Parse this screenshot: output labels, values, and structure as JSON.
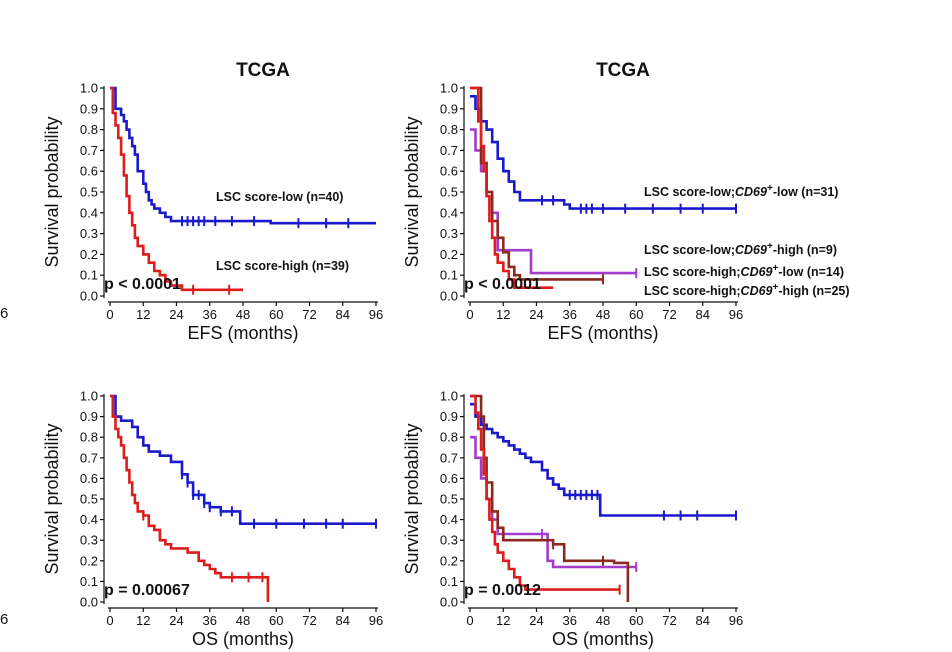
{
  "colors": {
    "low": "#1a1acc",
    "high": "#dd1c1c",
    "purple": "#a23ccc",
    "brown": "#8b2a1e"
  },
  "edge_fragments": [
    "6",
    "6"
  ],
  "chart_data": [
    {
      "type": "line",
      "title": "TCGA",
      "xlabel": "EFS (months)",
      "ylabel": "Survival probability",
      "xlim": [
        0,
        96
      ],
      "ylim": [
        0,
        1
      ],
      "xticks": [
        "0",
        "12",
        "24",
        "36",
        "48",
        "60",
        "72",
        "84",
        "96"
      ],
      "yticks": [
        "0.0",
        "0.1",
        "0.2",
        "0.3",
        "0.4",
        "0.5",
        "0.6",
        "0.7",
        "0.8",
        "0.9",
        "1.0"
      ],
      "pvalue": "p < 0.0001",
      "series": [
        {
          "name": "LSC score-low (n=40)",
          "color_key": "low",
          "legend": [
            {
              "t": "LSC score-low (n=40)",
              "i": false
            }
          ],
          "x": [
            0,
            2,
            4,
            5,
            6,
            7,
            8,
            9,
            10,
            12,
            13,
            14,
            15,
            16,
            18,
            20,
            22,
            58,
            96
          ],
          "y": [
            1,
            0.9,
            0.87,
            0.84,
            0.8,
            0.76,
            0.72,
            0.68,
            0.6,
            0.54,
            0.5,
            0.46,
            0.44,
            0.42,
            0.4,
            0.38,
            0.36,
            0.35,
            0.35
          ],
          "censor_x": [
            26,
            28,
            30,
            32,
            34,
            38,
            44,
            52,
            68,
            78,
            86
          ]
        },
        {
          "name": "LSC score-high (n=39)",
          "color_key": "high",
          "legend": [
            {
              "t": "LSC score-high (n=39)",
              "i": false
            }
          ],
          "x": [
            0,
            1,
            2,
            3,
            4,
            5,
            6,
            7,
            8,
            9,
            10,
            12,
            14,
            16,
            18,
            20,
            22,
            26,
            32,
            48
          ],
          "y": [
            1,
            0.88,
            0.82,
            0.76,
            0.68,
            0.58,
            0.48,
            0.4,
            0.34,
            0.28,
            0.24,
            0.2,
            0.16,
            0.12,
            0.1,
            0.07,
            0.05,
            0.03,
            0.03,
            0.03
          ],
          "censor_x": [
            30,
            43
          ]
        }
      ]
    },
    {
      "type": "line",
      "title": "TCGA",
      "xlabel": "EFS (months)",
      "ylabel": "Survival probability",
      "xlim": [
        0,
        96
      ],
      "ylim": [
        0,
        1
      ],
      "xticks": [
        "0",
        "12",
        "24",
        "36",
        "48",
        "60",
        "72",
        "84",
        "96"
      ],
      "yticks": [
        "0.0",
        "0.1",
        "0.2",
        "0.3",
        "0.4",
        "0.5",
        "0.6",
        "0.7",
        "0.8",
        "0.9",
        "1.0"
      ],
      "pvalue": "p < 0.0001",
      "series": [
        {
          "name": "LSC score-low;CD69+-low (n=31)",
          "color_key": "low",
          "legend": [
            {
              "t": "LSC score-low;",
              "i": false
            },
            {
              "t": "CD69",
              "i": true
            },
            {
              "t": "+",
              "i": false,
              "sup": true
            },
            {
              "t": "-low (n=31)",
              "i": false
            }
          ],
          "x": [
            0,
            2,
            4,
            6,
            8,
            10,
            12,
            14,
            16,
            18,
            24,
            34,
            36,
            96
          ],
          "y": [
            0.96,
            0.9,
            0.84,
            0.8,
            0.74,
            0.66,
            0.6,
            0.55,
            0.5,
            0.46,
            0.46,
            0.44,
            0.42,
            0.42
          ],
          "censor_x": [
            26,
            30,
            40,
            42,
            44,
            48,
            56,
            66,
            76,
            84,
            96
          ]
        },
        {
          "name": "LSC score-low;CD69+-high (n=9)",
          "color_key": "purple",
          "legend": [
            {
              "t": "LSC score-low;",
              "i": false
            },
            {
              "t": "CD69",
              "i": true
            },
            {
              "t": "+",
              "i": false,
              "sup": true
            },
            {
              "t": "-high (n=9)",
              "i": false
            }
          ],
          "x": [
            0,
            2,
            4,
            6,
            8,
            10,
            20,
            22,
            60
          ],
          "y": [
            0.8,
            0.7,
            0.6,
            0.5,
            0.4,
            0.22,
            0.22,
            0.11,
            0.11
          ],
          "censor_x": [
            60
          ]
        },
        {
          "name": "LSC score-high;CD69+-low (n=14)",
          "color_key": "brown",
          "legend": [
            {
              "t": "LSC score-high;",
              "i": false
            },
            {
              "t": "CD69",
              "i": true
            },
            {
              "t": "+",
              "i": false,
              "sup": true
            },
            {
              "t": "-low (n=14)",
              "i": false
            }
          ],
          "x": [
            0,
            4,
            6,
            8,
            10,
            12,
            14,
            16,
            18,
            20,
            48
          ],
          "y": [
            1,
            0.64,
            0.5,
            0.36,
            0.28,
            0.21,
            0.14,
            0.1,
            0.08,
            0.08,
            0.08
          ],
          "censor_x": [
            48
          ]
        },
        {
          "name": "LSC score-high;CD69+-high (n=25)",
          "color_key": "high",
          "legend": [
            {
              "t": "LSC score-high;",
              "i": false
            },
            {
              "t": "CD69",
              "i": true
            },
            {
              "t": "+",
              "i": false,
              "sup": true
            },
            {
              "t": "-high (n=25)",
              "i": false
            }
          ],
          "x": [
            0,
            3,
            4,
            5,
            6,
            7,
            8,
            9,
            10,
            12,
            14,
            16,
            22,
            30
          ],
          "y": [
            1,
            0.84,
            0.72,
            0.6,
            0.48,
            0.36,
            0.28,
            0.2,
            0.16,
            0.12,
            0.08,
            0.04,
            0.04,
            0.04
          ],
          "censor_x": []
        }
      ]
    },
    {
      "type": "line",
      "title": "",
      "xlabel": "OS (months)",
      "ylabel": "Survival probability",
      "xlim": [
        0,
        96
      ],
      "ylim": [
        0,
        1
      ],
      "xticks": [
        "0",
        "12",
        "24",
        "36",
        "48",
        "60",
        "72",
        "84",
        "96"
      ],
      "yticks": [
        "0.0",
        "0.1",
        "0.2",
        "0.3",
        "0.4",
        "0.5",
        "0.6",
        "0.7",
        "0.8",
        "0.9",
        "1.0"
      ],
      "pvalue": "p = 0.00067",
      "series": [
        {
          "name": "LSC score-low",
          "color_key": "low",
          "legend": [],
          "x": [
            0,
            2,
            4,
            8,
            10,
            12,
            14,
            18,
            22,
            26,
            28,
            30,
            34,
            36,
            40,
            46,
            47,
            96
          ],
          "y": [
            1,
            0.9,
            0.88,
            0.85,
            0.8,
            0.76,
            0.73,
            0.71,
            0.68,
            0.62,
            0.58,
            0.52,
            0.48,
            0.46,
            0.44,
            0.44,
            0.38,
            0.38
          ],
          "censor_x": [
            26,
            28,
            30,
            32,
            34,
            36,
            40,
            44,
            52,
            60,
            70,
            78,
            84,
            96
          ]
        },
        {
          "name": "LSC score-high",
          "color_key": "high",
          "legend": [],
          "x": [
            0,
            1,
            2,
            3,
            4,
            5,
            6,
            7,
            8,
            9,
            10,
            12,
            14,
            16,
            18,
            20,
            22,
            28,
            32,
            34,
            36,
            38,
            40,
            42,
            44,
            56,
            57
          ],
          "y": [
            1,
            0.9,
            0.84,
            0.8,
            0.76,
            0.7,
            0.64,
            0.58,
            0.52,
            0.48,
            0.44,
            0.42,
            0.37,
            0.35,
            0.3,
            0.28,
            0.26,
            0.24,
            0.2,
            0.18,
            0.16,
            0.14,
            0.12,
            0.12,
            0.12,
            0.12,
            0.0
          ],
          "censor_x": [
            12,
            44,
            50,
            55
          ]
        }
      ]
    },
    {
      "type": "line",
      "title": "",
      "xlabel": "OS (months)",
      "ylabel": "Survival probability",
      "xlim": [
        0,
        96
      ],
      "ylim": [
        0,
        1
      ],
      "xticks": [
        "0",
        "12",
        "24",
        "36",
        "48",
        "60",
        "72",
        "84",
        "96"
      ],
      "yticks": [
        "0.0",
        "0.1",
        "0.2",
        "0.3",
        "0.4",
        "0.5",
        "0.6",
        "0.7",
        "0.8",
        "0.9",
        "1.0"
      ],
      "pvalue": "p = 0.0012",
      "series": [
        {
          "name": "LSC score-low;CD69+-low",
          "color_key": "low",
          "legend": [],
          "x": [
            0,
            2,
            4,
            6,
            8,
            10,
            12,
            14,
            16,
            18,
            20,
            22,
            26,
            28,
            30,
            32,
            34,
            36,
            40,
            46,
            47,
            96
          ],
          "y": [
            0.96,
            0.9,
            0.86,
            0.84,
            0.82,
            0.8,
            0.78,
            0.76,
            0.74,
            0.72,
            0.7,
            0.68,
            0.64,
            0.6,
            0.57,
            0.55,
            0.52,
            0.52,
            0.52,
            0.52,
            0.42,
            0.42
          ],
          "censor_x": [
            36,
            38,
            40,
            42,
            44,
            46,
            70,
            76,
            82,
            96
          ]
        },
        {
          "name": "LSC score-low;CD69+-high",
          "color_key": "purple",
          "legend": [],
          "x": [
            0,
            2,
            4,
            6,
            8,
            10,
            12,
            14,
            16,
            18,
            20,
            22,
            24,
            26,
            28,
            30,
            60
          ],
          "y": [
            0.8,
            0.7,
            0.6,
            0.5,
            0.4,
            0.33,
            0.33,
            0.33,
            0.33,
            0.33,
            0.33,
            0.33,
            0.33,
            0.33,
            0.2,
            0.17,
            0.17
          ],
          "censor_x": [
            26,
            60
          ]
        },
        {
          "name": "LSC score-high;CD69+-low",
          "color_key": "brown",
          "legend": [],
          "x": [
            0,
            4,
            5,
            6,
            8,
            10,
            12,
            14,
            20,
            26,
            30,
            34,
            36,
            40,
            48,
            52,
            56,
            57
          ],
          "y": [
            1,
            0.9,
            0.7,
            0.58,
            0.44,
            0.36,
            0.3,
            0.3,
            0.3,
            0.3,
            0.28,
            0.2,
            0.2,
            0.2,
            0.2,
            0.19,
            0.19,
            0.0
          ],
          "censor_x": [
            30,
            48
          ]
        },
        {
          "name": "LSC score-high;CD69+-high",
          "color_key": "high",
          "legend": [],
          "x": [
            0,
            2,
            3,
            4,
            5,
            6,
            7,
            8,
            9,
            10,
            12,
            14,
            16,
            18,
            20,
            22,
            54
          ],
          "y": [
            1,
            0.92,
            0.84,
            0.74,
            0.62,
            0.5,
            0.4,
            0.34,
            0.28,
            0.24,
            0.2,
            0.16,
            0.12,
            0.08,
            0.06,
            0.06,
            0.06
          ],
          "censor_x": [
            54
          ]
        }
      ]
    }
  ]
}
